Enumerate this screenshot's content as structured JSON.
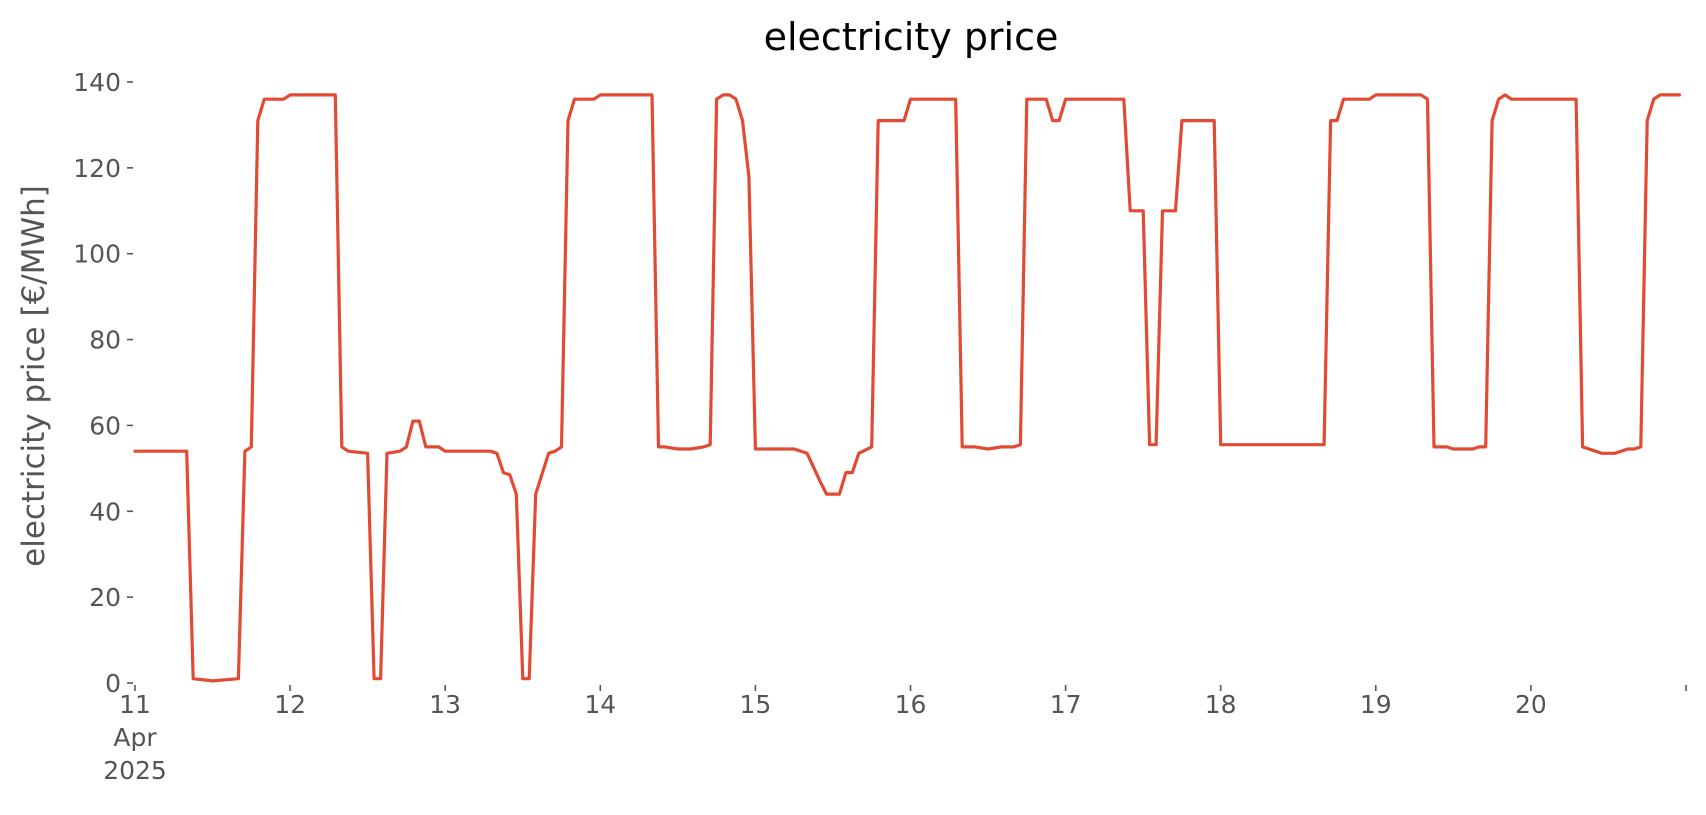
{
  "chart_data": {
    "type": "line",
    "title": "electricity price",
    "xlabel": "",
    "ylabel": "electricity price [€/MWh]",
    "ylim": [
      0,
      140
    ],
    "xlim": [
      "2025-04-11T00:00",
      "2025-04-20T23:00"
    ],
    "grid": false,
    "legend": "none",
    "yticks": [
      0,
      20,
      40,
      60,
      80,
      100,
      120,
      140
    ],
    "xticks": [
      {
        "date": "2025-04-11",
        "label": [
          "11",
          "Apr",
          "2025"
        ]
      },
      {
        "date": "2025-04-12",
        "label": [
          "12"
        ]
      },
      {
        "date": "2025-04-13",
        "label": [
          "13"
        ]
      },
      {
        "date": "2025-04-14",
        "label": [
          "14"
        ]
      },
      {
        "date": "2025-04-15",
        "label": [
          "15"
        ]
      },
      {
        "date": "2025-04-16",
        "label": [
          "16"
        ]
      },
      {
        "date": "2025-04-17",
        "label": [
          "17"
        ]
      },
      {
        "date": "2025-04-18",
        "label": [
          "18"
        ]
      },
      {
        "date": "2025-04-19",
        "label": [
          "19"
        ]
      },
      {
        "date": "2025-04-20",
        "label": [
          "20"
        ]
      },
      {
        "date": "2025-04-21",
        "label": [
          ""
        ]
      }
    ],
    "series": [
      {
        "color": "#e24a33",
        "points": [
          [
            "2025-04-11T00:00",
            54
          ],
          [
            "2025-04-11T08:00",
            54
          ],
          [
            "2025-04-11T09:00",
            1
          ],
          [
            "2025-04-11T12:00",
            0.5
          ],
          [
            "2025-04-11T16:00",
            1
          ],
          [
            "2025-04-11T17:00",
            54
          ],
          [
            "2025-04-11T18:00",
            55
          ],
          [
            "2025-04-11T19:00",
            131
          ],
          [
            "2025-04-11T20:00",
            136
          ],
          [
            "2025-04-11T23:00",
            136
          ],
          [
            "2025-04-12T00:00",
            137
          ],
          [
            "2025-04-12T07:00",
            137
          ],
          [
            "2025-04-12T08:00",
            55
          ],
          [
            "2025-04-12T09:00",
            54
          ],
          [
            "2025-04-12T12:00",
            53.5
          ],
          [
            "2025-04-12T13:00",
            1
          ],
          [
            "2025-04-12T14:00",
            1
          ],
          [
            "2025-04-12T15:00",
            53.5
          ],
          [
            "2025-04-12T17:00",
            54
          ],
          [
            "2025-04-12T18:00",
            55
          ],
          [
            "2025-04-12T19:00",
            61
          ],
          [
            "2025-04-12T20:00",
            61
          ],
          [
            "2025-04-12T21:00",
            55
          ],
          [
            "2025-04-12T23:00",
            55
          ],
          [
            "2025-04-13T00:00",
            54
          ],
          [
            "2025-04-13T07:00",
            54
          ],
          [
            "2025-04-13T08:00",
            53.5
          ],
          [
            "2025-04-13T09:00",
            49
          ],
          [
            "2025-04-13T10:00",
            48.5
          ],
          [
            "2025-04-13T11:00",
            44
          ],
          [
            "2025-04-13T12:00",
            1
          ],
          [
            "2025-04-13T13:00",
            1
          ],
          [
            "2025-04-13T14:00",
            44
          ],
          [
            "2025-04-13T16:00",
            53.5
          ],
          [
            "2025-04-13T17:00",
            54
          ],
          [
            "2025-04-13T18:00",
            55
          ],
          [
            "2025-04-13T19:00",
            131
          ],
          [
            "2025-04-13T20:00",
            136
          ],
          [
            "2025-04-13T23:00",
            136
          ],
          [
            "2025-04-14T00:00",
            137
          ],
          [
            "2025-04-14T08:00",
            137
          ],
          [
            "2025-04-14T09:00",
            55
          ],
          [
            "2025-04-14T10:00",
            55
          ],
          [
            "2025-04-14T12:00",
            54.5
          ],
          [
            "2025-04-14T14:00",
            54.5
          ],
          [
            "2025-04-14T16:00",
            55
          ],
          [
            "2025-04-14T17:00",
            55.5
          ],
          [
            "2025-04-14T18:00",
            136
          ],
          [
            "2025-04-14T19:00",
            137
          ],
          [
            "2025-04-14T20:00",
            137
          ],
          [
            "2025-04-14T21:00",
            136
          ],
          [
            "2025-04-14T22:00",
            131
          ],
          [
            "2025-04-14T23:00",
            118
          ],
          [
            "2025-04-15T00:00",
            54.5
          ],
          [
            "2025-04-15T06:00",
            54.5
          ],
          [
            "2025-04-15T08:00",
            53.5
          ],
          [
            "2025-04-15T10:00",
            47
          ],
          [
            "2025-04-15T11:00",
            44
          ],
          [
            "2025-04-15T12:00",
            44
          ],
          [
            "2025-04-15T13:00",
            44
          ],
          [
            "2025-04-15T14:00",
            49
          ],
          [
            "2025-04-15T15:00",
            49
          ],
          [
            "2025-04-15T16:00",
            53.5
          ],
          [
            "2025-04-15T18:00",
            55
          ],
          [
            "2025-04-15T19:00",
            131
          ],
          [
            "2025-04-15T23:00",
            131
          ],
          [
            "2025-04-16T00:00",
            136
          ],
          [
            "2025-04-16T07:00",
            136
          ],
          [
            "2025-04-16T08:00",
            55
          ],
          [
            "2025-04-16T10:00",
            55
          ],
          [
            "2025-04-16T12:00",
            54.5
          ],
          [
            "2025-04-16T14:00",
            55
          ],
          [
            "2025-04-16T16:00",
            55
          ],
          [
            "2025-04-16T17:00",
            55.5
          ],
          [
            "2025-04-16T18:00",
            136
          ],
          [
            "2025-04-16T21:00",
            136
          ],
          [
            "2025-04-16T22:00",
            131
          ],
          [
            "2025-04-16T23:00",
            131
          ],
          [
            "2025-04-17T00:00",
            136
          ],
          [
            "2025-04-17T09:00",
            136
          ],
          [
            "2025-04-17T10:00",
            110
          ],
          [
            "2025-04-17T12:00",
            110
          ],
          [
            "2025-04-17T13:00",
            55.5
          ],
          [
            "2025-04-17T14:00",
            55.5
          ],
          [
            "2025-04-17T15:00",
            110
          ],
          [
            "2025-04-17T17:00",
            110
          ],
          [
            "2025-04-17T18:00",
            131
          ],
          [
            "2025-04-17T23:00",
            131
          ],
          [
            "2025-04-18T00:00",
            55.5
          ],
          [
            "2025-04-18T16:00",
            55.5
          ],
          [
            "2025-04-18T17:00",
            131
          ],
          [
            "2025-04-18T18:00",
            131
          ],
          [
            "2025-04-18T19:00",
            136
          ],
          [
            "2025-04-18T23:00",
            136
          ],
          [
            "2025-04-19T00:00",
            137
          ],
          [
            "2025-04-19T07:00",
            137
          ],
          [
            "2025-04-19T08:00",
            136
          ],
          [
            "2025-04-19T09:00",
            55
          ],
          [
            "2025-04-19T11:00",
            55
          ],
          [
            "2025-04-19T12:00",
            54.5
          ],
          [
            "2025-04-19T15:00",
            54.5
          ],
          [
            "2025-04-19T16:00",
            55
          ],
          [
            "2025-04-19T17:00",
            55
          ],
          [
            "2025-04-19T18:00",
            131
          ],
          [
            "2025-04-19T19:00",
            136
          ],
          [
            "2025-04-19T20:00",
            137
          ],
          [
            "2025-04-19T21:00",
            136
          ],
          [
            "2025-04-19T23:00",
            136
          ],
          [
            "2025-04-20T00:00",
            136
          ],
          [
            "2025-04-20T07:00",
            136
          ],
          [
            "2025-04-20T08:00",
            55
          ],
          [
            "2025-04-20T10:00",
            54
          ],
          [
            "2025-04-20T11:00",
            53.5
          ],
          [
            "2025-04-20T13:00",
            53.5
          ],
          [
            "2025-04-20T15:00",
            54.5
          ],
          [
            "2025-04-20T16:00",
            54.5
          ],
          [
            "2025-04-20T17:00",
            55
          ],
          [
            "2025-04-20T18:00",
            131
          ],
          [
            "2025-04-20T19:00",
            136
          ],
          [
            "2025-04-20T20:00",
            137
          ],
          [
            "2025-04-20T23:00",
            137
          ]
        ]
      }
    ]
  }
}
